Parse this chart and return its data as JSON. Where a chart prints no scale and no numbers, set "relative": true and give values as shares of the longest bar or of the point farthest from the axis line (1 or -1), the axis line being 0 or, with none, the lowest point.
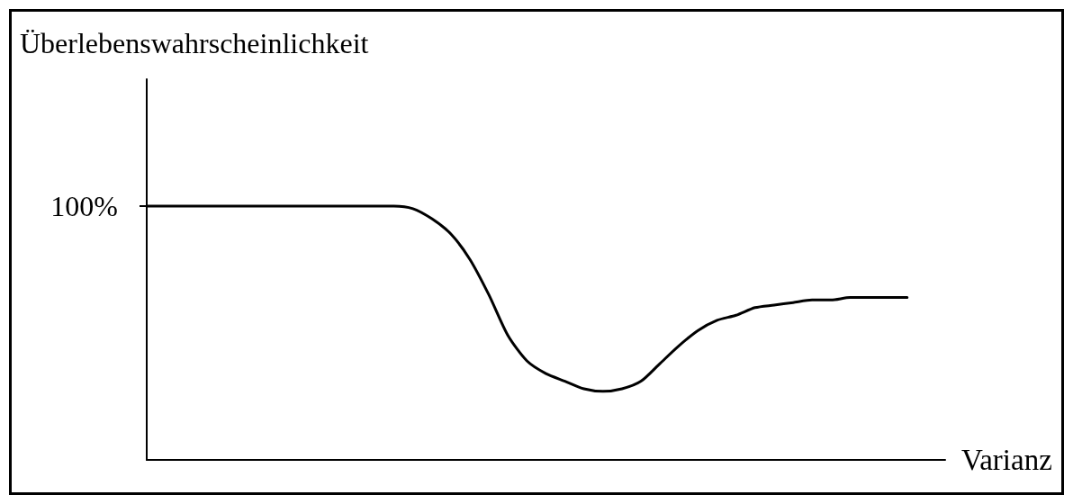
{
  "chart_data": {
    "type": "line",
    "relative": true,
    "color": "#000000",
    "xlabel": "Varianz",
    "annotations": [
      "Überlebenswahrscheinlichkeit",
      "100%"
    ],
    "categories": [
      null,
      null,
      null,
      null,
      null,
      null,
      null,
      null,
      null,
      null,
      null,
      null,
      null,
      null,
      null,
      null,
      null,
      null,
      null,
      null,
      null,
      null,
      null,
      null,
      null,
      null,
      null,
      null,
      null,
      null,
      null,
      null,
      null,
      null,
      null,
      null,
      null,
      null,
      null,
      null,
      null,
      null,
      null
    ],
    "values": [
      1,
      1,
      1,
      1,
      1,
      1,
      1,
      1,
      1,
      1,
      1,
      1,
      1,
      1,
      0.99,
      0.95,
      0.89,
      0.79,
      0.65,
      0.49,
      0.39,
      0.34,
      0.31,
      0.28,
      0.27,
      0.28,
      0.31,
      0.38,
      0.45,
      0.51,
      0.55,
      0.57,
      0.6,
      0.61,
      0.62,
      0.63,
      0.63,
      0.64,
      0.64,
      0.64,
      0.64,
      null,
      null
    ]
  }
}
